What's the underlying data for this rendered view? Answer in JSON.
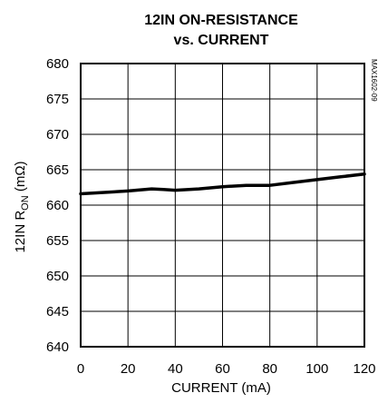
{
  "chart_data": {
    "type": "line",
    "title_line1": "12IN ON-RESISTANCE",
    "title_line2": "vs. CURRENT",
    "xlabel": "CURRENT (mA)",
    "ylabel_main": "12IN R",
    "ylabel_sub": "ON",
    "ylabel_unit": " (mΩ)",
    "figure_id": "MAX1602-09",
    "xlim": [
      0,
      120
    ],
    "ylim": [
      640,
      680
    ],
    "x_ticks": [
      0,
      20,
      40,
      60,
      80,
      100,
      120
    ],
    "y_ticks": [
      640,
      645,
      650,
      655,
      660,
      665,
      670,
      675,
      680
    ],
    "grid": true,
    "series": [
      {
        "x": [
          0,
          10,
          20,
          30,
          35,
          40,
          50,
          60,
          70,
          80,
          90,
          100,
          110,
          120
        ],
        "y": [
          661.6,
          661.8,
          662.0,
          662.3,
          662.2,
          662.1,
          662.3,
          662.6,
          662.8,
          662.8,
          663.2,
          663.6,
          664.0,
          664.4
        ]
      }
    ]
  }
}
